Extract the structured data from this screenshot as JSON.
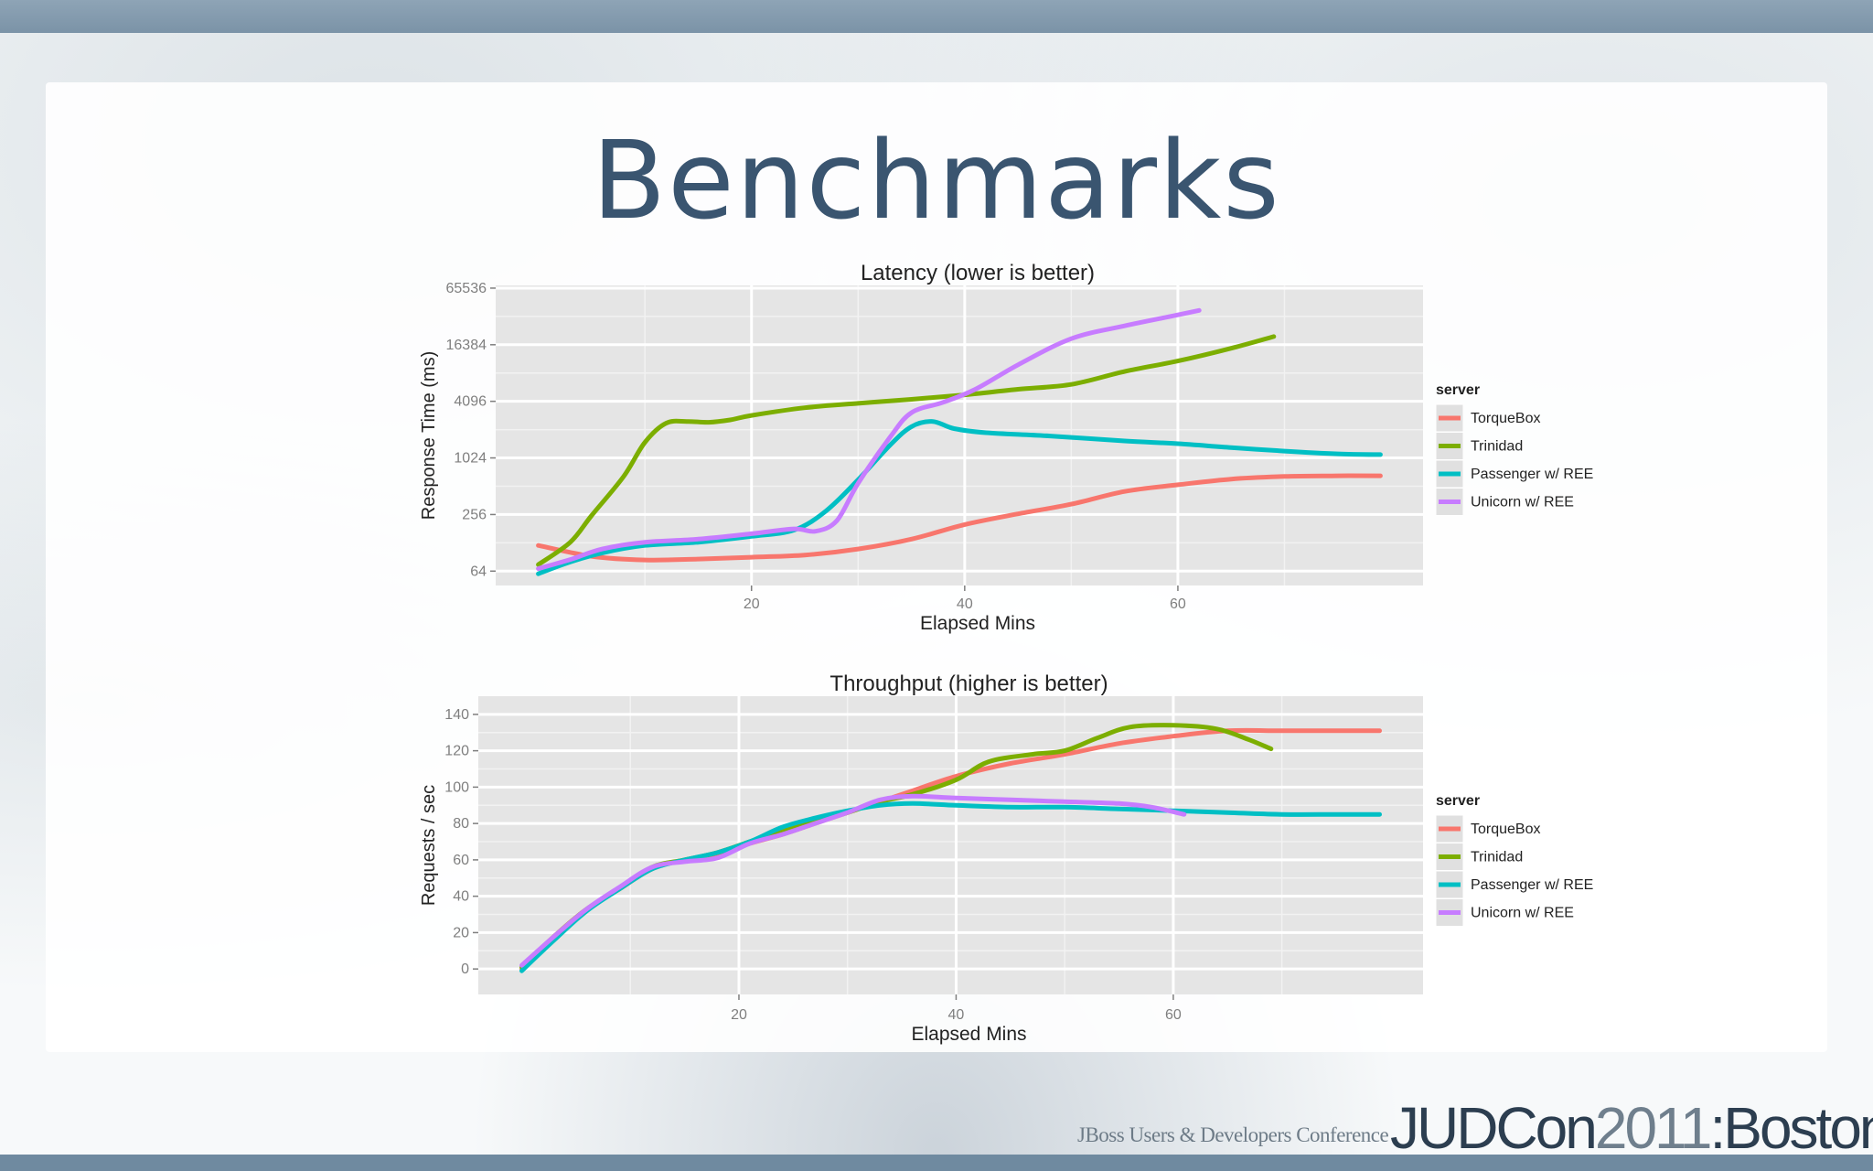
{
  "slide": {
    "title": "Benchmarks",
    "footer_tagline": "JBoss Users & Developers Conference",
    "footer_brand_name": "JUDCon",
    "footer_brand_year": "2011",
    "footer_brand_place": ":Boston"
  },
  "colors": {
    "title": "#3a5570",
    "panel_bg": "#e5e5e5",
    "grid": "#ffffff",
    "TorqueBox": "#f8766d",
    "Trinidad": "#7cae00",
    "Passenger w/ REE": "#00bfc4",
    "Unicorn w/ REE": "#c77cff"
  },
  "chart_data": [
    {
      "type": "line",
      "title": "Latency (lower is better)",
      "xlabel": "Elapsed Mins",
      "ylabel": "Response Time (ms)",
      "y_scale": "log2",
      "xlim": [
        -4,
        83
      ],
      "ylim": [
        45,
        70000
      ],
      "x_ticks": [
        20,
        40,
        60
      ],
      "y_ticks": [
        64,
        256,
        1024,
        4096,
        16384,
        65536
      ],
      "y_tick_labels": [
        "64",
        "256",
        "1024",
        "4096",
        "16384",
        "65536"
      ],
      "grid": true,
      "legend_title": "server",
      "legend_position": "right",
      "series": [
        {
          "name": "TorqueBox",
          "x": [
            0,
            5,
            10,
            15,
            20,
            25,
            30,
            35,
            40,
            45,
            50,
            55,
            60,
            65,
            70,
            75,
            79
          ],
          "y": [
            120,
            92,
            84,
            86,
            90,
            95,
            110,
            140,
            200,
            260,
            330,
            450,
            530,
            610,
            650,
            660,
            660
          ]
        },
        {
          "name": "Trinidad",
          "x": [
            0,
            3,
            5,
            8,
            10,
            12,
            14,
            16,
            18,
            20,
            25,
            30,
            35,
            40,
            45,
            50,
            55,
            60,
            65,
            69
          ],
          "y": [
            75,
            130,
            250,
            650,
            1500,
            2400,
            2500,
            2450,
            2600,
            2900,
            3500,
            3900,
            4300,
            4800,
            5500,
            6200,
            8500,
            11000,
            15000,
            20000
          ]
        },
        {
          "name": "Passenger w/ REE",
          "x": [
            0,
            3,
            6,
            10,
            15,
            20,
            24,
            27,
            30,
            33,
            35,
            37,
            39,
            42,
            48,
            55,
            60,
            65,
            70,
            75,
            79
          ],
          "y": [
            60,
            80,
            100,
            120,
            130,
            150,
            175,
            280,
            600,
            1400,
            2200,
            2500,
            2100,
            1900,
            1750,
            1550,
            1450,
            1320,
            1210,
            1130,
            1110
          ]
        },
        {
          "name": "Unicorn w/ REE",
          "x": [
            0,
            3,
            6,
            10,
            15,
            20,
            24,
            26,
            28,
            30,
            33,
            35,
            38,
            41,
            45,
            50,
            55,
            60,
            62
          ],
          "y": [
            68,
            85,
            110,
            130,
            140,
            160,
            180,
            170,
            220,
            550,
            1700,
            3100,
            4000,
            5500,
            10000,
            19000,
            26000,
            34000,
            38000
          ]
        }
      ]
    },
    {
      "type": "line",
      "title": "Throughput (higher is better)",
      "xlabel": "Elapsed Mins",
      "ylabel": "Requests / sec",
      "xlim": [
        -4,
        83
      ],
      "ylim": [
        -14,
        150
      ],
      "x_ticks": [
        20,
        40,
        60
      ],
      "y_ticks": [
        0,
        20,
        40,
        60,
        80,
        100,
        120,
        140
      ],
      "grid": true,
      "legend_title": "server",
      "legend_position": "right",
      "series": [
        {
          "name": "TorqueBox",
          "x": [
            0,
            3,
            6,
            9,
            12,
            15,
            18,
            21,
            24,
            27,
            30,
            33,
            36,
            40,
            45,
            50,
            55,
            60,
            65,
            70,
            75,
            79
          ],
          "y": [
            0,
            18,
            33,
            44,
            55,
            60,
            63,
            69,
            74,
            80,
            86,
            92,
            98,
            106,
            113,
            118,
            124,
            128,
            131,
            131,
            131,
            131
          ]
        },
        {
          "name": "Trinidad",
          "x": [
            0,
            3,
            6,
            9,
            12,
            15,
            18,
            21,
            24,
            27,
            30,
            33,
            36,
            40,
            43,
            47,
            50,
            53,
            56,
            60,
            64,
            67,
            69
          ],
          "y": [
            1,
            18,
            33,
            44,
            56,
            60,
            64,
            70,
            76,
            81,
            86,
            92,
            96,
            104,
            114,
            118,
            120,
            127,
            133,
            134,
            132,
            126,
            121
          ]
        },
        {
          "name": "Passenger w/ REE",
          "x": [
            0,
            3,
            6,
            9,
            12,
            15,
            18,
            21,
            24,
            27,
            30,
            33,
            36,
            40,
            45,
            50,
            55,
            60,
            65,
            70,
            75,
            79
          ],
          "y": [
            -1,
            16,
            32,
            44,
            55,
            60,
            64,
            70,
            78,
            83,
            87,
            90,
            91,
            90,
            89,
            89,
            88,
            87,
            86,
            85,
            85,
            85
          ]
        },
        {
          "name": "Unicorn w/ REE",
          "x": [
            0,
            3,
            6,
            9,
            12,
            15,
            18,
            21,
            24,
            27,
            30,
            33,
            36,
            40,
            45,
            50,
            55,
            58,
            61
          ],
          "y": [
            2,
            18,
            33,
            45,
            56,
            59,
            61,
            69,
            74,
            80,
            86,
            93,
            95,
            94,
            93,
            92,
            91,
            89,
            85
          ]
        }
      ]
    }
  ]
}
